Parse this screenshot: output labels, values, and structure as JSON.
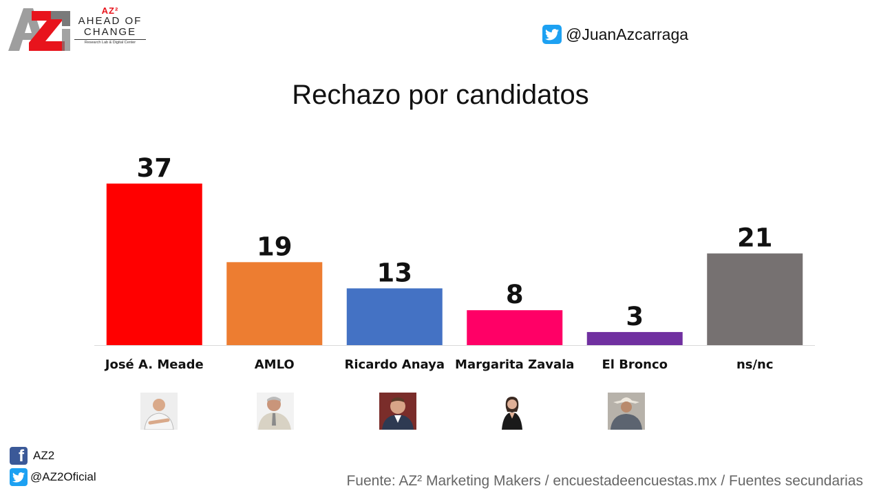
{
  "logo": {
    "az2": "AZ²",
    "line1": "AHEAD OF",
    "line2": "CHANGE",
    "subline": "Research Lab & Digital Center",
    "icon": "az2-logo-icon"
  },
  "twitter_handle": "@JuanAzcarraga",
  "title": "Rechazo por candidatos",
  "chart_data": {
    "type": "bar",
    "title": "Rechazo por candidatos",
    "categories": [
      "José A. Meade",
      "AMLO",
      "Ricardo Anaya",
      "Margarita Zavala",
      "El Bronco",
      "ns/nc"
    ],
    "values": [
      37,
      19,
      13,
      8,
      3,
      21
    ],
    "colors": [
      "#ff0000",
      "#ed7d31",
      "#4472c4",
      "#ff0066",
      "#7030a0",
      "#767171"
    ],
    "data_labels": [
      "37",
      "19",
      "13",
      "8",
      "3",
      "21"
    ],
    "grid": false,
    "legend": "none",
    "ylim": [
      0,
      40
    ]
  },
  "photos": [
    "meade-photo",
    "amlo-photo",
    "anaya-photo",
    "zavala-photo",
    "bronco-photo"
  ],
  "social": {
    "facebook": "AZ2",
    "twitter": "@AZ2Oficial"
  },
  "source": "Fuente: AZ² Marketing Makers / encuestadeencuestas.mx / Fuentes secundarias"
}
